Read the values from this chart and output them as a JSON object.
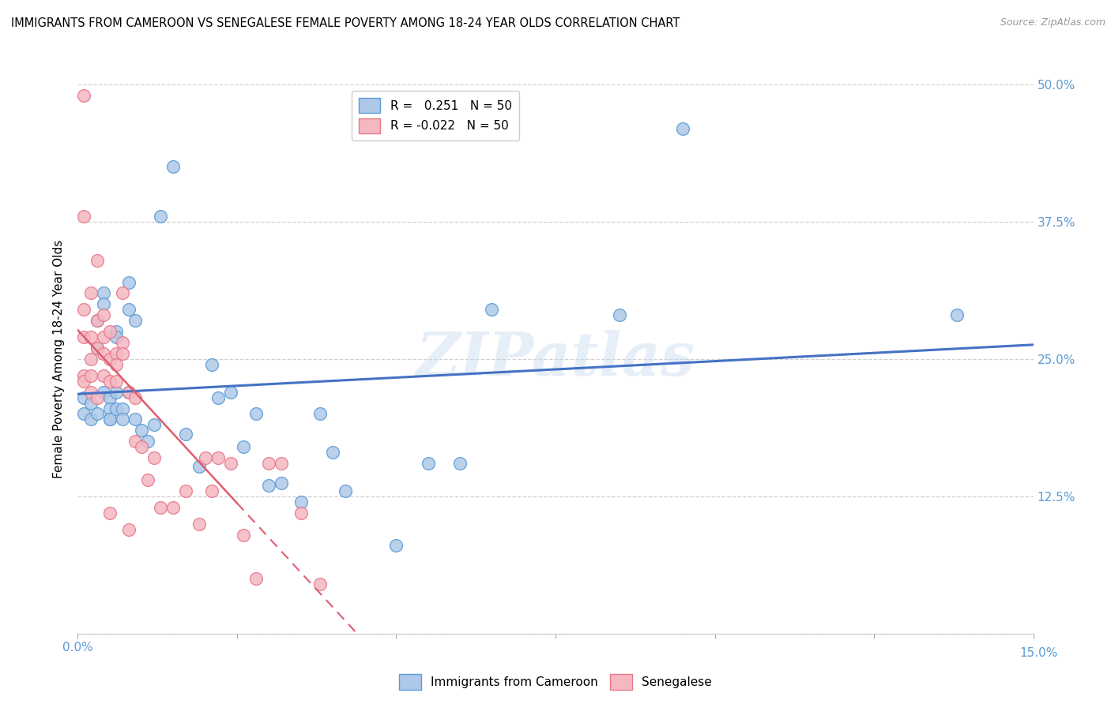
{
  "title": "IMMIGRANTS FROM CAMEROON VS SENEGALESE FEMALE POVERTY AMONG 18-24 YEAR OLDS CORRELATION CHART",
  "source": "Source: ZipAtlas.com",
  "ylabel": "Female Poverty Among 18-24 Year Olds",
  "xlim": [
    0.0,
    0.15
  ],
  "ylim": [
    0.0,
    0.5
  ],
  "yticks": [
    0.0,
    0.125,
    0.25,
    0.375,
    0.5
  ],
  "ytick_labels": [
    "",
    "12.5%",
    "25.0%",
    "37.5%",
    "50.0%"
  ],
  "xtick_positions": [
    0.0,
    0.025,
    0.05,
    0.075,
    0.1,
    0.125,
    0.15
  ],
  "r1": 0.251,
  "r2": -0.022,
  "n1": 50,
  "n2": 50,
  "color_blue": "#aec8e8",
  "color_pink": "#f4b8c1",
  "edge_blue": "#5b9bd5",
  "edge_pink": "#e8768a",
  "line_blue": "#4472c4",
  "line_pink": "#e05c6e",
  "watermark": "ZIPatlas",
  "blue_x": [
    0.001,
    0.001,
    0.002,
    0.002,
    0.003,
    0.003,
    0.003,
    0.004,
    0.004,
    0.004,
    0.005,
    0.005,
    0.005,
    0.005,
    0.006,
    0.006,
    0.006,
    0.006,
    0.007,
    0.007,
    0.008,
    0.008,
    0.008,
    0.009,
    0.009,
    0.01,
    0.011,
    0.012,
    0.013,
    0.015,
    0.017,
    0.019,
    0.021,
    0.022,
    0.024,
    0.026,
    0.028,
    0.03,
    0.032,
    0.035,
    0.038,
    0.04,
    0.042,
    0.05,
    0.055,
    0.06,
    0.065,
    0.085,
    0.095,
    0.138
  ],
  "blue_y": [
    0.215,
    0.2,
    0.21,
    0.195,
    0.285,
    0.26,
    0.2,
    0.31,
    0.3,
    0.22,
    0.215,
    0.205,
    0.195,
    0.195,
    0.275,
    0.27,
    0.22,
    0.205,
    0.205,
    0.195,
    0.32,
    0.295,
    0.22,
    0.285,
    0.195,
    0.185,
    0.175,
    0.19,
    0.38,
    0.425,
    0.182,
    0.152,
    0.245,
    0.215,
    0.22,
    0.17,
    0.2,
    0.135,
    0.137,
    0.12,
    0.2,
    0.165,
    0.13,
    0.08,
    0.155,
    0.155,
    0.295,
    0.29,
    0.46,
    0.29
  ],
  "pink_x": [
    0.001,
    0.001,
    0.001,
    0.001,
    0.001,
    0.001,
    0.002,
    0.002,
    0.002,
    0.002,
    0.002,
    0.003,
    0.003,
    0.003,
    0.003,
    0.004,
    0.004,
    0.004,
    0.004,
    0.005,
    0.005,
    0.005,
    0.005,
    0.006,
    0.006,
    0.006,
    0.007,
    0.007,
    0.007,
    0.008,
    0.008,
    0.009,
    0.009,
    0.01,
    0.011,
    0.012,
    0.013,
    0.015,
    0.017,
    0.019,
    0.02,
    0.021,
    0.022,
    0.024,
    0.026,
    0.028,
    0.03,
    0.032,
    0.035,
    0.038
  ],
  "pink_y": [
    0.49,
    0.38,
    0.295,
    0.27,
    0.235,
    0.23,
    0.31,
    0.27,
    0.25,
    0.235,
    0.22,
    0.34,
    0.285,
    0.26,
    0.215,
    0.29,
    0.27,
    0.255,
    0.235,
    0.275,
    0.25,
    0.23,
    0.11,
    0.255,
    0.245,
    0.23,
    0.31,
    0.265,
    0.255,
    0.22,
    0.095,
    0.215,
    0.175,
    0.17,
    0.14,
    0.16,
    0.115,
    0.115,
    0.13,
    0.1,
    0.16,
    0.13,
    0.16,
    0.155,
    0.09,
    0.05,
    0.155,
    0.155,
    0.11,
    0.045
  ]
}
